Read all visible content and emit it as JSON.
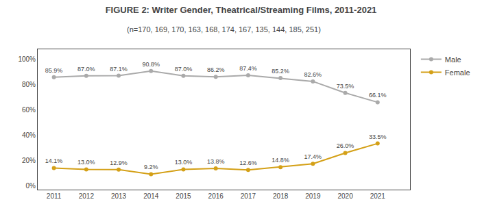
{
  "chart_data": {
    "type": "line",
    "title": "FIGURE 2: Writer Gender, Theatrical/Streaming Films, 2011-2021",
    "subtitle": "(n=170, 169, 170, 163, 168, 174, 167, 135, 144, 185, 251)",
    "x": [
      2011,
      2012,
      2013,
      2014,
      2015,
      2016,
      2017,
      2018,
      2019,
      2020,
      2021
    ],
    "series": [
      {
        "name": "Male",
        "color": "#aaaaaa",
        "values": [
          85.9,
          87.0,
          87.1,
          90.8,
          87.0,
          86.2,
          87.4,
          85.2,
          82.6,
          73.5,
          66.1
        ],
        "value_labels": [
          "85.9%",
          "87.0%",
          "87.1%",
          "90.8%",
          "87.0%",
          "86.2%",
          "87.4%",
          "85.2%",
          "82.6%",
          "73.5%",
          "66.1%"
        ]
      },
      {
        "name": "Female",
        "color": "#D4A017",
        "values": [
          14.1,
          13.0,
          12.9,
          9.2,
          13.0,
          13.8,
          12.6,
          14.8,
          17.4,
          26.0,
          33.5
        ],
        "value_labels": [
          "14.1%",
          "13.0%",
          "12.9%",
          "9.2%",
          "13.0%",
          "13.8%",
          "12.6%",
          "14.8%",
          "17.4%",
          "26.0%",
          "33.5%"
        ]
      }
    ],
    "xlim": [
      2010.5,
      2022.0
    ],
    "xticks": [
      2011,
      2012,
      2013,
      2014,
      2015,
      2016,
      2017,
      2018,
      2019,
      2020,
      2021
    ],
    "ylim": [
      -3,
      108
    ],
    "yticks": [
      {
        "value": 0,
        "label": "0%"
      },
      {
        "value": 20,
        "label": "20%"
      },
      {
        "value": 40,
        "label": "40%"
      },
      {
        "value": 60,
        "label": "60%"
      },
      {
        "value": 80,
        "label": "80%"
      },
      {
        "value": 100,
        "label": "100%"
      }
    ],
    "grid": false,
    "legend": "upper right",
    "data_labels": true,
    "marker": "circle",
    "line_style": "solid"
  }
}
